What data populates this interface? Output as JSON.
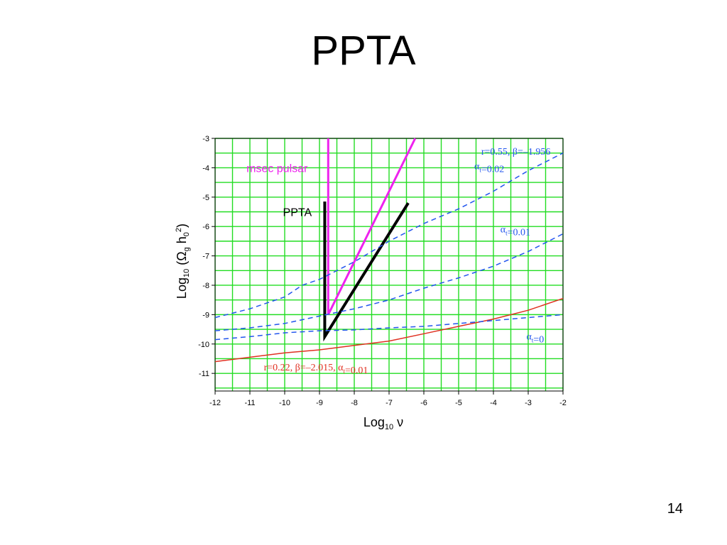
{
  "slide": {
    "title": "PPTA",
    "page_number": "14"
  },
  "chart_data": {
    "type": "line",
    "xlabel": "Log10 ν",
    "ylabel": "Log10 (Ωg h0²)",
    "xlim": [
      -12,
      -2
    ],
    "ylim": [
      -11.6,
      -3
    ],
    "xticks": [
      -12,
      -11,
      -10,
      -9,
      -8,
      -7,
      -6,
      -5,
      -4,
      -3,
      -2
    ],
    "yticks": [
      -3,
      -4,
      -5,
      -6,
      -7,
      -8,
      -9,
      -10,
      -11
    ],
    "grid": true,
    "grid_color": "#22dd22",
    "series": [
      {
        "name": "msec pulsar",
        "style": "solid",
        "color": "#ee22ee",
        "width": 3,
        "x": [
          -8.75,
          -8.75,
          -6.25
        ],
        "y": [
          -3,
          -9,
          -3
        ]
      },
      {
        "name": "PPTA",
        "style": "solid",
        "color": "#000000",
        "width": 4,
        "x": [
          -8.85,
          -8.85,
          -6.45
        ],
        "y": [
          -5.15,
          -9.75,
          -5.2
        ]
      },
      {
        "name": "r=0.22, β=-2.015, αt=0.01",
        "style": "solid",
        "color": "#e03020",
        "width": 1.5,
        "x": [
          -12,
          -11,
          -10,
          -9,
          -8,
          -7,
          -6,
          -5,
          -4,
          -3,
          -2
        ],
        "y": [
          -10.6,
          -10.45,
          -10.3,
          -10.2,
          -10.05,
          -9.9,
          -9.65,
          -9.4,
          -9.15,
          -8.85,
          -8.45
        ]
      },
      {
        "name": "r=0.55, β=-1.956, αt=0.02",
        "style": "dashed",
        "color": "#2255ee",
        "width": 1.5,
        "x": [
          -12,
          -11,
          -10,
          -9.5,
          -9,
          -8,
          -7,
          -6,
          -5,
          -4,
          -3,
          -2
        ],
        "y": [
          -9.1,
          -8.8,
          -8.4,
          -8,
          -7.8,
          -7.2,
          -6.5,
          -5.9,
          -5.4,
          -4.8,
          -4.1,
          -3.5
        ]
      },
      {
        "name": "αt=0.01",
        "style": "dashed",
        "color": "#2255ee",
        "width": 1.5,
        "x": [
          -12,
          -11,
          -10,
          -9,
          -8,
          -7,
          -6,
          -5,
          -4,
          -3,
          -2
        ],
        "y": [
          -9.55,
          -9.45,
          -9.3,
          -9.05,
          -8.8,
          -8.5,
          -8.1,
          -7.75,
          -7.35,
          -6.85,
          -6.25
        ]
      },
      {
        "name": "αt=0",
        "style": "dashed",
        "color": "#2255ee",
        "width": 1.5,
        "x": [
          -12,
          -11,
          -10,
          -9,
          -8,
          -7,
          -6,
          -5,
          -4,
          -3,
          -2
        ],
        "y": [
          -9.85,
          -9.75,
          -9.62,
          -9.55,
          -9.52,
          -9.45,
          -9.4,
          -9.3,
          -9.2,
          -9.1,
          -9.0
        ]
      }
    ],
    "annotations": [
      {
        "id": "msec",
        "text": "msec pulsar",
        "x": -11.1,
        "y": -4.15,
        "color": "#ee22ee"
      },
      {
        "id": "ppta",
        "text": "PPTA",
        "x": -10.05,
        "y": -5.65,
        "color": "#000000"
      },
      {
        "id": "r055",
        "text": "r=0.55, β=–1.956",
        "x": -4.35,
        "y": -3.55,
        "color": "#2255ee"
      },
      {
        "id": "a002",
        "text": "αt=0.02",
        "x": -4.55,
        "y": -4.05,
        "color": "#2255ee"
      },
      {
        "id": "a001",
        "text": "αt=0.01",
        "x": -3.8,
        "y": -6.2,
        "color": "#2255ee"
      },
      {
        "id": "a0",
        "text": "αt=0",
        "x": -3.05,
        "y": -9.85,
        "color": "#2255ee"
      },
      {
        "id": "r022",
        "text": "r=0.22, β=–2.015, αt=0.01",
        "x": -10.6,
        "y": -10.9,
        "color": "#e03020"
      }
    ]
  }
}
